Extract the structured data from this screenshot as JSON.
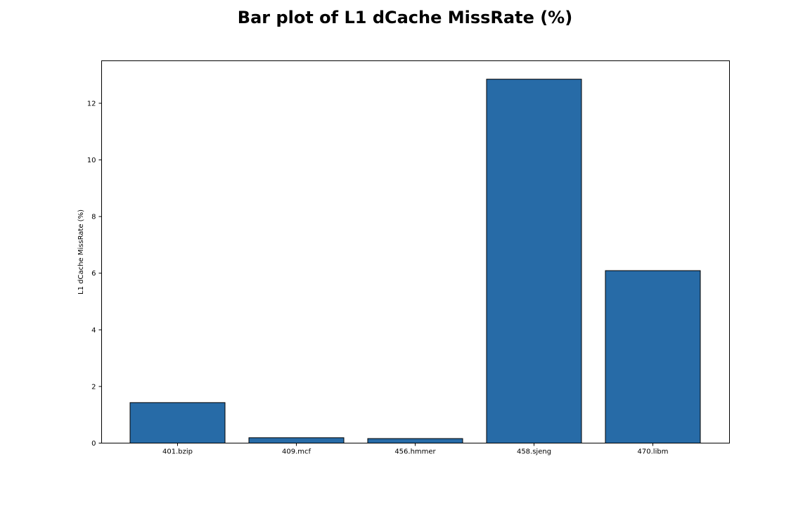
{
  "chart_data": {
    "type": "bar",
    "title": "Bar plot of L1 dCache MissRate (%)",
    "xlabel": "",
    "ylabel": "L1 dCache MissRate (%)",
    "categories": [
      "401.bzip",
      "409.mcf",
      "456.hmmer",
      "458.sjeng",
      "470.libm"
    ],
    "values": [
      1.43,
      0.19,
      0.16,
      12.85,
      6.09
    ],
    "ylim": [
      0,
      13.5
    ],
    "yticks": [
      0,
      2,
      4,
      6,
      8,
      10,
      12
    ],
    "bar_color": "#276ba7",
    "bar_edge_color": "#000000",
    "grid": false,
    "legend": "none"
  }
}
